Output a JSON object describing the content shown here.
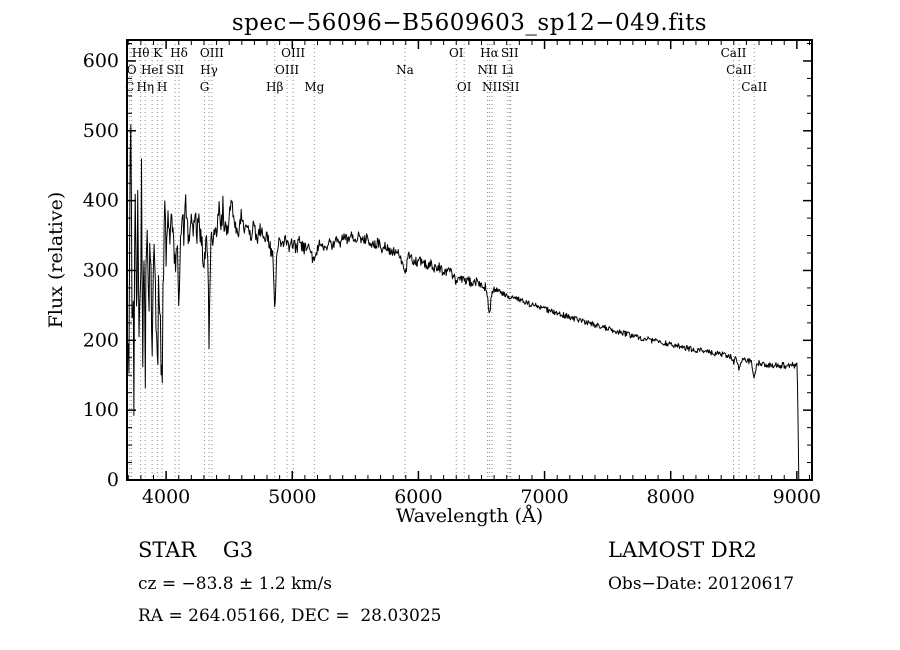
{
  "title": "spec−56096−B5609603_sp12−049.fits",
  "footer": {
    "class_label": "STAR    G3",
    "cz": "cz = −83.8 ± 1.2 km/s",
    "radec": "RA = 264.05166, DEC =  28.03025",
    "survey": "LAMOST DR2",
    "obs_date": "Obs−Date: 20120617"
  },
  "chart_data": {
    "type": "line",
    "title": "spec−56096−B5609603_sp12−049.fits",
    "xlabel": "Wavelength (Å)",
    "ylabel": "Flux (relative)",
    "xlim": [
      3690,
      9120
    ],
    "ylim": [
      0,
      630
    ],
    "xticks": [
      4000,
      5000,
      6000,
      7000,
      8000,
      9000
    ],
    "yticks": [
      0,
      100,
      200,
      300,
      400,
      500,
      600
    ],
    "grid": false,
    "line_color": "#000000",
    "marker_line_color": "#8a8a8a",
    "points": [
      [
        3700,
        160
      ],
      [
        3704,
        90
      ],
      [
        3710,
        280
      ],
      [
        3716,
        500
      ],
      [
        3721,
        510
      ],
      [
        3726,
        420
      ],
      [
        3731,
        150
      ],
      [
        3736,
        300
      ],
      [
        3741,
        250
      ],
      [
        3746,
        100
      ],
      [
        3751,
        360
      ],
      [
        3756,
        470
      ],
      [
        3762,
        310
      ],
      [
        3768,
        200
      ],
      [
        3774,
        410
      ],
      [
        3780,
        340
      ],
      [
        3786,
        140
      ],
      [
        3792,
        300
      ],
      [
        3798,
        250
      ],
      [
        3804,
        450
      ],
      [
        3810,
        280
      ],
      [
        3816,
        180
      ],
      [
        3822,
        380
      ],
      [
        3828,
        320
      ],
      [
        3835,
        150
      ],
      [
        3842,
        340
      ],
      [
        3849,
        400
      ],
      [
        3856,
        290
      ],
      [
        3863,
        220
      ],
      [
        3870,
        370
      ],
      [
        3877,
        300
      ],
      [
        3884,
        250
      ],
      [
        3891,
        200
      ],
      [
        3898,
        350
      ],
      [
        3905,
        300
      ],
      [
        3912,
        260
      ],
      [
        3920,
        230
      ],
      [
        3926,
        180
      ],
      [
        3933,
        110
      ],
      [
        3940,
        260
      ],
      [
        3947,
        300
      ],
      [
        3954,
        210
      ],
      [
        3961,
        170
      ],
      [
        3968,
        130
      ],
      [
        3975,
        280
      ],
      [
        3982,
        330
      ],
      [
        3990,
        360
      ],
      [
        4000,
        330
      ],
      [
        4015,
        370
      ],
      [
        4030,
        340
      ],
      [
        4045,
        385
      ],
      [
        4060,
        330
      ],
      [
        4075,
        300
      ],
      [
        4088,
        340
      ],
      [
        4101,
        240
      ],
      [
        4114,
        330
      ],
      [
        4128,
        375
      ],
      [
        4142,
        350
      ],
      [
        4156,
        400
      ],
      [
        4170,
        360
      ],
      [
        4185,
        345
      ],
      [
        4200,
        385
      ],
      [
        4215,
        360
      ],
      [
        4230,
        390
      ],
      [
        4245,
        355
      ],
      [
        4260,
        375
      ],
      [
        4275,
        345
      ],
      [
        4290,
        330
      ],
      [
        4305,
        310
      ],
      [
        4320,
        355
      ],
      [
        4332,
        300
      ],
      [
        4340,
        205
      ],
      [
        4350,
        310
      ],
      [
        4362,
        360
      ],
      [
        4375,
        340
      ],
      [
        4390,
        375
      ],
      [
        4405,
        355
      ],
      [
        4420,
        385
      ],
      [
        4435,
        360
      ],
      [
        4450,
        390
      ],
      [
        4465,
        365
      ],
      [
        4480,
        350
      ],
      [
        4495,
        380
      ],
      [
        4520,
        395
      ],
      [
        4545,
        365
      ],
      [
        4570,
        350
      ],
      [
        4595,
        380
      ],
      [
        4620,
        360
      ],
      [
        4645,
        370
      ],
      [
        4670,
        350
      ],
      [
        4695,
        365
      ],
      [
        4720,
        345
      ],
      [
        4745,
        360
      ],
      [
        4770,
        345
      ],
      [
        4795,
        355
      ],
      [
        4820,
        335
      ],
      [
        4845,
        320
      ],
      [
        4861,
        240
      ],
      [
        4878,
        330
      ],
      [
        4900,
        345
      ],
      [
        4925,
        335
      ],
      [
        4950,
        345
      ],
      [
        4975,
        332
      ],
      [
        5000,
        340
      ],
      [
        5030,
        332
      ],
      [
        5060,
        342
      ],
      [
        5090,
        330
      ],
      [
        5120,
        338
      ],
      [
        5150,
        328
      ],
      [
        5175,
        305
      ],
      [
        5200,
        332
      ],
      [
        5230,
        342
      ],
      [
        5260,
        330
      ],
      [
        5290,
        340
      ],
      [
        5320,
        336
      ],
      [
        5350,
        346
      ],
      [
        5380,
        340
      ],
      [
        5410,
        350
      ],
      [
        5440,
        344
      ],
      [
        5470,
        350
      ],
      [
        5500,
        346
      ],
      [
        5530,
        350
      ],
      [
        5560,
        342
      ],
      [
        5590,
        346
      ],
      [
        5620,
        340
      ],
      [
        5650,
        336
      ],
      [
        5680,
        340
      ],
      [
        5710,
        332
      ],
      [
        5740,
        336
      ],
      [
        5770,
        330
      ],
      [
        5800,
        326
      ],
      [
        5830,
        330
      ],
      [
        5860,
        316
      ],
      [
        5893,
        292
      ],
      [
        5920,
        320
      ],
      [
        5950,
        316
      ],
      [
        5980,
        312
      ],
      [
        6010,
        314
      ],
      [
        6040,
        310
      ],
      [
        6070,
        306
      ],
      [
        6100,
        310
      ],
      [
        6130,
        302
      ],
      [
        6160,
        306
      ],
      [
        6190,
        300
      ],
      [
        6220,
        296
      ],
      [
        6250,
        300
      ],
      [
        6280,
        292
      ],
      [
        6300,
        283
      ],
      [
        6330,
        290
      ],
      [
        6360,
        284
      ],
      [
        6390,
        288
      ],
      [
        6420,
        282
      ],
      [
        6450,
        285
      ],
      [
        6480,
        278
      ],
      [
        6510,
        280
      ],
      [
        6540,
        274
      ],
      [
        6563,
        232
      ],
      [
        6585,
        274
      ],
      [
        6610,
        272
      ],
      [
        6640,
        270
      ],
      [
        6670,
        267
      ],
      [
        6700,
        264
      ],
      [
        6730,
        260
      ],
      [
        6760,
        262
      ],
      [
        6800,
        258
      ],
      [
        6840,
        255
      ],
      [
        6880,
        252
      ],
      [
        6920,
        250
      ],
      [
        6960,
        247
      ],
      [
        7000,
        245
      ],
      [
        7050,
        242
      ],
      [
        7100,
        239
      ],
      [
        7150,
        236
      ],
      [
        7200,
        233
      ],
      [
        7250,
        230
      ],
      [
        7300,
        228
      ],
      [
        7350,
        225
      ],
      [
        7400,
        222
      ],
      [
        7450,
        220
      ],
      [
        7500,
        217
      ],
      [
        7550,
        214
      ],
      [
        7600,
        211
      ],
      [
        7650,
        209
      ],
      [
        7700,
        206
      ],
      [
        7750,
        204
      ],
      [
        7800,
        202
      ],
      [
        7850,
        200
      ],
      [
        7900,
        198
      ],
      [
        7950,
        196
      ],
      [
        8000,
        194
      ],
      [
        8050,
        192
      ],
      [
        8100,
        190
      ],
      [
        8150,
        188
      ],
      [
        8200,
        186
      ],
      [
        8250,
        185
      ],
      [
        8300,
        183
      ],
      [
        8350,
        181
      ],
      [
        8400,
        180
      ],
      [
        8450,
        178
      ],
      [
        8480,
        176
      ],
      [
        8498,
        168
      ],
      [
        8520,
        175
      ],
      [
        8542,
        158
      ],
      [
        8562,
        173
      ],
      [
        8590,
        172
      ],
      [
        8620,
        170
      ],
      [
        8640,
        168
      ],
      [
        8662,
        148
      ],
      [
        8684,
        168
      ],
      [
        8710,
        167
      ],
      [
        8740,
        166
      ],
      [
        8770,
        165
      ],
      [
        8800,
        164
      ],
      [
        8830,
        165
      ],
      [
        8860,
        163
      ],
      [
        8890,
        165
      ],
      [
        8920,
        162
      ],
      [
        8950,
        166
      ],
      [
        8980,
        164
      ],
      [
        9000,
        168
      ],
      [
        9008,
        110
      ],
      [
        9015,
        0
      ]
    ],
    "render_noise": [
      {
        "until": 4000,
        "amp": 40
      },
      {
        "until": 4500,
        "amp": 18
      },
      {
        "until": 5200,
        "amp": 10
      },
      {
        "until": 6600,
        "amp": 7
      },
      {
        "until": 9005,
        "amp": 4
      },
      {
        "until": 9200,
        "amp": 0
      }
    ],
    "line_markers": [
      {
        "wavelength": 3798,
        "label": "Hθ",
        "row": 1
      },
      {
        "wavelength": 3933,
        "label": "K",
        "row": 1
      },
      {
        "wavelength": 4102,
        "label": "Hδ",
        "row": 1
      },
      {
        "wavelength": 4363,
        "label": "OIII",
        "row": 1
      },
      {
        "wavelength": 5007,
        "label": "OIII",
        "row": 1
      },
      {
        "wavelength": 6300,
        "label": "OI",
        "row": 1
      },
      {
        "wavelength": 6563,
        "label": "Hα",
        "row": 1
      },
      {
        "wavelength": 6724,
        "label": "SII",
        "row": 1
      },
      {
        "wavelength": 8498,
        "label": "CaII",
        "row": 1
      },
      {
        "wavelength": 3727,
        "label": "O",
        "row": 2
      },
      {
        "wavelength": 3889,
        "label": "HeI",
        "row": 2
      },
      {
        "wavelength": 4072,
        "label": "SII",
        "row": 2
      },
      {
        "wavelength": 4340,
        "label": "Hγ",
        "row": 2
      },
      {
        "wavelength": 4959,
        "label": "OIII",
        "row": 2
      },
      {
        "wavelength": 5893,
        "label": "Na",
        "row": 2
      },
      {
        "wavelength": 6548,
        "label": "NII",
        "row": 2
      },
      {
        "wavelength": 6708,
        "label": "Li",
        "row": 2
      },
      {
        "wavelength": 8542,
        "label": "CaII",
        "row": 2
      },
      {
        "wavelength": 3712,
        "label": "C",
        "row": 3
      },
      {
        "wavelength": 3835,
        "label": "Hη",
        "row": 3
      },
      {
        "wavelength": 3968,
        "label": "H",
        "row": 3
      },
      {
        "wavelength": 4305,
        "label": "G",
        "row": 3
      },
      {
        "wavelength": 4861,
        "label": "Hβ",
        "row": 3
      },
      {
        "wavelength": 5175,
        "label": "Mg",
        "row": 3
      },
      {
        "wavelength": 6363,
        "label": "OI",
        "row": 3
      },
      {
        "wavelength": 6583,
        "label": "NII",
        "row": 3
      },
      {
        "wavelength": 6731,
        "label": "SII",
        "row": 3
      },
      {
        "wavelength": 8662,
        "label": "CaII",
        "row": 3
      }
    ]
  }
}
